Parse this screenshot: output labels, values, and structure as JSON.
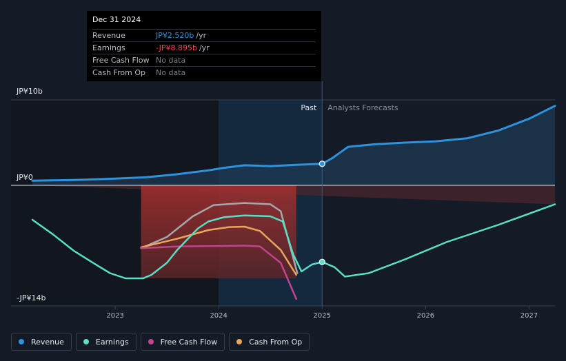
{
  "tooltip": {
    "date": "Dec 31 2024",
    "rows": [
      {
        "label": "Revenue",
        "value": "JP¥2.520b",
        "unit": "/yr",
        "color": "#2e93dd"
      },
      {
        "label": "Earnings",
        "value": "-JP¥8.895b",
        "unit": "/yr",
        "color": "#f0484e"
      },
      {
        "label": "Free Cash Flow",
        "value": "No data",
        "unit": "",
        "color": "#7b8088"
      },
      {
        "label": "Cash From Op",
        "value": "No data",
        "unit": "",
        "color": "#7b8088"
      }
    ]
  },
  "regions": {
    "past_label": "Past",
    "forecast_label": "Analysts Forecasts"
  },
  "legend": [
    {
      "label": "Revenue",
      "color": "#2e93dd"
    },
    {
      "label": "Earnings",
      "color": "#58e0c6"
    },
    {
      "label": "Free Cash Flow",
      "color": "#c2438f"
    },
    {
      "label": "Cash From Op",
      "color": "#e8a65a"
    }
  ],
  "chart_data": {
    "type": "line",
    "y_tick_labels": [
      "JP¥10b",
      "JP¥0",
      "-JP¥14b"
    ],
    "y_ticks": [
      10,
      0,
      -14
    ],
    "x_tick_labels": [
      "2023",
      "2024",
      "2025",
      "2026",
      "2027"
    ],
    "xlim": [
      2022.2,
      2027.25
    ],
    "ylim": [
      -14,
      10
    ],
    "past_end": 2025.0,
    "highlight_range": [
      2024.0,
      2025.0
    ],
    "series": [
      {
        "name": "Revenue",
        "color": "#2e93dd",
        "points": [
          [
            2022.2,
            0.55
          ],
          [
            2022.6,
            0.62
          ],
          [
            2023.0,
            0.78
          ],
          [
            2023.3,
            0.95
          ],
          [
            2023.6,
            1.3
          ],
          [
            2023.9,
            1.75
          ],
          [
            2024.05,
            2.05
          ],
          [
            2024.25,
            2.35
          ],
          [
            2024.5,
            2.25
          ],
          [
            2024.75,
            2.4
          ],
          [
            2025.0,
            2.52
          ],
          [
            2025.1,
            3.2
          ],
          [
            2025.25,
            4.5
          ],
          [
            2025.5,
            4.8
          ],
          [
            2025.8,
            5.0
          ],
          [
            2026.1,
            5.15
          ],
          [
            2026.4,
            5.5
          ],
          [
            2026.7,
            6.4
          ],
          [
            2027.0,
            7.8
          ],
          [
            2027.25,
            9.3
          ]
        ]
      },
      {
        "name": "Earnings",
        "color": "#58e0c6",
        "points": [
          [
            2022.2,
            -4.0
          ],
          [
            2022.4,
            -5.7
          ],
          [
            2022.6,
            -7.6
          ],
          [
            2022.8,
            -9.1
          ],
          [
            2022.95,
            -10.2
          ],
          [
            2023.1,
            -10.8
          ],
          [
            2023.27,
            -10.8
          ],
          [
            2023.35,
            -10.4
          ],
          [
            2023.5,
            -9.0
          ],
          [
            2023.6,
            -7.5
          ],
          [
            2023.8,
            -5.0
          ],
          [
            2023.9,
            -4.2
          ],
          [
            2024.05,
            -3.7
          ],
          [
            2024.25,
            -3.5
          ],
          [
            2024.5,
            -3.6
          ],
          [
            2024.62,
            -4.2
          ],
          [
            2024.72,
            -8.0
          ],
          [
            2024.8,
            -10.0
          ],
          [
            2024.9,
            -9.2
          ],
          [
            2025.0,
            -8.895
          ],
          [
            2025.12,
            -9.5
          ],
          [
            2025.22,
            -10.6
          ],
          [
            2025.45,
            -10.2
          ],
          [
            2025.8,
            -8.6
          ],
          [
            2026.2,
            -6.6
          ],
          [
            2026.7,
            -4.6
          ],
          [
            2027.25,
            -2.2
          ]
        ]
      },
      {
        "name": "Free Cash Flow",
        "color": "#c2438f",
        "points": [
          [
            2023.25,
            -7.3
          ],
          [
            2023.6,
            -7.1
          ],
          [
            2024.0,
            -7.05
          ],
          [
            2024.25,
            -7.0
          ],
          [
            2024.4,
            -7.1
          ],
          [
            2024.6,
            -9.0
          ],
          [
            2024.75,
            -13.2
          ]
        ]
      },
      {
        "name": "Cash From Op",
        "color": "#e8a65a",
        "points": [
          [
            2023.25,
            -7.2
          ],
          [
            2023.6,
            -6.2
          ],
          [
            2023.9,
            -5.2
          ],
          [
            2024.1,
            -4.85
          ],
          [
            2024.25,
            -4.8
          ],
          [
            2024.4,
            -5.3
          ],
          [
            2024.6,
            -7.5
          ],
          [
            2024.75,
            -10.4
          ]
        ]
      },
      {
        "name": "Free Cash Flow (grey)",
        "color": "#a5a9ae",
        "points": [
          [
            2023.25,
            -7.3
          ],
          [
            2023.5,
            -6.0
          ],
          [
            2023.75,
            -3.6
          ],
          [
            2023.95,
            -2.3
          ],
          [
            2024.25,
            -2.05
          ],
          [
            2024.5,
            -2.2
          ],
          [
            2024.6,
            -3.0
          ],
          [
            2024.7,
            -7.5
          ],
          [
            2024.76,
            -10.2
          ]
        ]
      }
    ],
    "negative_fills": [
      {
        "x_range": [
          2022.2,
          2027.25
        ],
        "color": "#4a262e"
      },
      {
        "x_range": [
          2023.25,
          2024.75
        ],
        "color": "#8a2a2e"
      }
    ]
  }
}
